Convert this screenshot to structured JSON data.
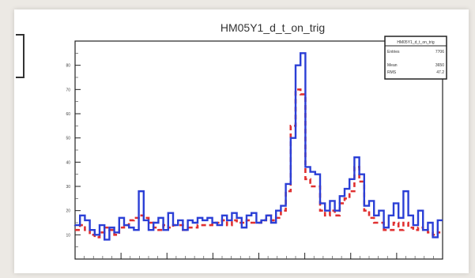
{
  "chart_data": {
    "type": "line",
    "title": "HM05Y1_d_t_on_trig",
    "xlabel": "",
    "ylabel": "",
    "ylim": [
      0,
      90
    ],
    "yticks": [
      10,
      20,
      30,
      40,
      50,
      60,
      70,
      80
    ],
    "x_bins": 75,
    "series": [
      {
        "name": "",
        "color": "#2b3fd6",
        "style": "solid",
        "values": [
          14,
          18,
          16,
          12,
          10,
          14,
          8,
          13,
          11,
          17,
          14,
          13,
          12,
          28,
          16,
          12,
          15,
          17,
          12,
          19,
          14,
          16,
          12,
          16,
          15,
          17,
          16,
          17,
          15,
          14,
          18,
          16,
          19,
          17,
          13,
          18,
          19,
          15,
          16,
          18,
          15,
          20,
          22,
          31,
          50,
          80,
          85,
          38,
          36,
          35,
          23,
          20,
          24,
          20,
          26,
          29,
          33,
          42,
          35,
          22,
          24,
          18,
          20,
          13,
          18,
          23,
          17,
          28,
          18,
          14,
          20,
          12,
          15,
          9,
          16
        ]
      },
      {
        "name": "",
        "color": "#e03030",
        "style": "dashed",
        "values": [
          12,
          14,
          12,
          10,
          9,
          11,
          13,
          12,
          10,
          13,
          14,
          16,
          17,
          18,
          17,
          15,
          13,
          12,
          14,
          13,
          14,
          14,
          12,
          13,
          13,
          14,
          14,
          14,
          15,
          15,
          16,
          14,
          16,
          15,
          15,
          16,
          15,
          15,
          16,
          18,
          16,
          17,
          20,
          28,
          55,
          70,
          68,
          33,
          30,
          30,
          20,
          18,
          20,
          18,
          23,
          25,
          28,
          38,
          32,
          20,
          17,
          15,
          15,
          12,
          12,
          15,
          12,
          15,
          13,
          12,
          13,
          12,
          11,
          10,
          11
        ]
      }
    ],
    "stats_box": {
      "title": "HM05Y1_d_t_on_trig",
      "rows": [
        [
          "Entries",
          "7706"
        ],
        [
          "Mean",
          "3650"
        ],
        [
          "RMS",
          "47.2"
        ]
      ]
    },
    "grid": false,
    "legend": "top-right"
  }
}
